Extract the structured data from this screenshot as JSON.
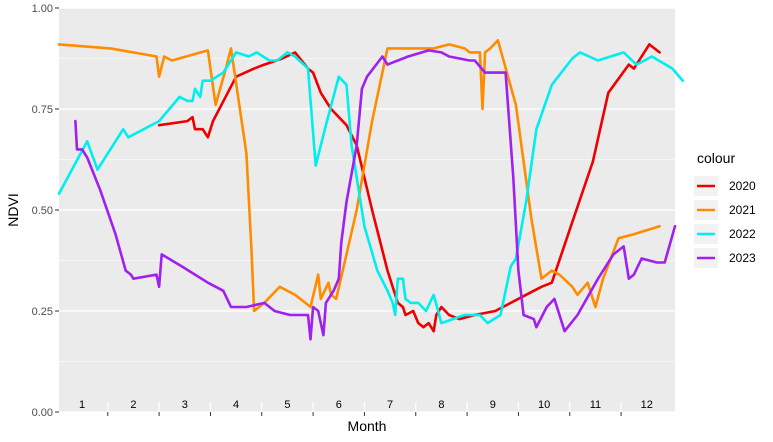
{
  "chart_data": {
    "type": "line",
    "xlabel": "Month",
    "ylabel": "NDVI",
    "xlim": [
      0,
      12
    ],
    "ylim": [
      0,
      1
    ],
    "y_ticks": [
      "0.00",
      "0.25",
      "0.50",
      "0.75",
      "1.00"
    ],
    "y_tick_values": [
      0,
      0.25,
      0.5,
      0.75,
      1.0
    ],
    "month_labels": [
      "1",
      "2",
      "3",
      "4",
      "5",
      "6",
      "7",
      "8",
      "9",
      "10",
      "11",
      "12"
    ],
    "month_label_values": [
      0.45,
      1.45,
      2.45,
      3.45,
      4.45,
      5.45,
      6.45,
      7.45,
      8.45,
      9.45,
      10.45,
      11.45
    ],
    "month_divider_values": [
      0.95,
      1.95,
      2.95,
      3.95,
      4.95,
      5.95,
      6.95,
      7.95,
      8.95,
      9.95,
      10.95
    ],
    "grid": true,
    "legend": {
      "title": "colour",
      "position": "right"
    },
    "series": [
      {
        "name": "2020",
        "color": "#ee0000",
        "points": [
          [
            1.95,
            0.71
          ],
          [
            2.5,
            0.72
          ],
          [
            2.6,
            0.73
          ],
          [
            2.65,
            0.7
          ],
          [
            2.8,
            0.7
          ],
          [
            2.9,
            0.68
          ],
          [
            3.0,
            0.72
          ],
          [
            3.45,
            0.83
          ],
          [
            3.8,
            0.85
          ],
          [
            4.0,
            0.86
          ],
          [
            4.35,
            0.875
          ],
          [
            4.6,
            0.89
          ],
          [
            4.85,
            0.85
          ],
          [
            4.95,
            0.84
          ],
          [
            5.1,
            0.79
          ],
          [
            5.3,
            0.75
          ],
          [
            5.6,
            0.71
          ],
          [
            5.8,
            0.66
          ],
          [
            6.1,
            0.5
          ],
          [
            6.4,
            0.35
          ],
          [
            6.6,
            0.27
          ],
          [
            6.7,
            0.26
          ],
          [
            6.75,
            0.24
          ],
          [
            6.9,
            0.25
          ],
          [
            7.0,
            0.22
          ],
          [
            7.1,
            0.21
          ],
          [
            7.2,
            0.22
          ],
          [
            7.3,
            0.2
          ],
          [
            7.35,
            0.24
          ],
          [
            7.45,
            0.26
          ],
          [
            7.6,
            0.24
          ],
          [
            7.8,
            0.23
          ],
          [
            8.1,
            0.24
          ],
          [
            8.5,
            0.25
          ],
          [
            8.8,
            0.27
          ],
          [
            9.1,
            0.29
          ],
          [
            9.4,
            0.31
          ],
          [
            9.6,
            0.32
          ],
          [
            10.0,
            0.47
          ],
          [
            10.4,
            0.62
          ],
          [
            10.7,
            0.79
          ],
          [
            11.1,
            0.86
          ],
          [
            11.2,
            0.85
          ],
          [
            11.5,
            0.91
          ],
          [
            11.7,
            0.89
          ]
        ]
      },
      {
        "name": "2021",
        "color": "#ff8c00",
        "points": [
          [
            0.0,
            0.91
          ],
          [
            1.0,
            0.9
          ],
          [
            1.9,
            0.88
          ],
          [
            1.95,
            0.83
          ],
          [
            2.05,
            0.88
          ],
          [
            2.2,
            0.87
          ],
          [
            2.9,
            0.895
          ],
          [
            3.05,
            0.76
          ],
          [
            3.25,
            0.85
          ],
          [
            3.35,
            0.9
          ],
          [
            3.65,
            0.64
          ],
          [
            3.75,
            0.4
          ],
          [
            3.8,
            0.25
          ],
          [
            4.0,
            0.27
          ],
          [
            4.3,
            0.31
          ],
          [
            4.6,
            0.29
          ],
          [
            4.8,
            0.27
          ],
          [
            4.9,
            0.26
          ],
          [
            5.05,
            0.34
          ],
          [
            5.1,
            0.28
          ],
          [
            5.25,
            0.32
          ],
          [
            5.3,
            0.29
          ],
          [
            5.4,
            0.28
          ],
          [
            5.8,
            0.5
          ],
          [
            6.1,
            0.72
          ],
          [
            6.4,
            0.9
          ],
          [
            6.8,
            0.9
          ],
          [
            7.3,
            0.9
          ],
          [
            7.6,
            0.91
          ],
          [
            7.9,
            0.9
          ],
          [
            8.0,
            0.89
          ],
          [
            8.2,
            0.89
          ],
          [
            8.25,
            0.75
          ],
          [
            8.3,
            0.89
          ],
          [
            8.4,
            0.9
          ],
          [
            8.55,
            0.92
          ],
          [
            8.9,
            0.76
          ],
          [
            9.2,
            0.48
          ],
          [
            9.4,
            0.33
          ],
          [
            9.6,
            0.35
          ],
          [
            9.75,
            0.34
          ],
          [
            10.0,
            0.31
          ],
          [
            10.1,
            0.29
          ],
          [
            10.3,
            0.32
          ],
          [
            10.45,
            0.26
          ],
          [
            10.6,
            0.33
          ],
          [
            10.9,
            0.43
          ],
          [
            11.2,
            0.44
          ],
          [
            11.7,
            0.46
          ]
        ]
      },
      {
        "name": "2022",
        "color": "#00eeee",
        "points": [
          [
            0.0,
            0.54
          ],
          [
            0.55,
            0.67
          ],
          [
            0.75,
            0.6
          ],
          [
            1.25,
            0.7
          ],
          [
            1.35,
            0.68
          ],
          [
            1.95,
            0.72
          ],
          [
            2.35,
            0.78
          ],
          [
            2.5,
            0.77
          ],
          [
            2.6,
            0.77
          ],
          [
            2.65,
            0.8
          ],
          [
            2.75,
            0.78
          ],
          [
            2.8,
            0.82
          ],
          [
            2.95,
            0.82
          ],
          [
            3.2,
            0.84
          ],
          [
            3.45,
            0.89
          ],
          [
            3.7,
            0.88
          ],
          [
            3.85,
            0.89
          ],
          [
            4.1,
            0.87
          ],
          [
            4.25,
            0.87
          ],
          [
            4.45,
            0.89
          ],
          [
            4.6,
            0.88
          ],
          [
            4.85,
            0.85
          ],
          [
            5.0,
            0.61
          ],
          [
            5.2,
            0.71
          ],
          [
            5.45,
            0.83
          ],
          [
            5.6,
            0.81
          ],
          [
            5.7,
            0.66
          ],
          [
            5.95,
            0.46
          ],
          [
            6.2,
            0.35
          ],
          [
            6.4,
            0.3
          ],
          [
            6.5,
            0.27
          ],
          [
            6.55,
            0.24
          ],
          [
            6.6,
            0.33
          ],
          [
            6.7,
            0.33
          ],
          [
            6.75,
            0.28
          ],
          [
            6.85,
            0.27
          ],
          [
            7.0,
            0.27
          ],
          [
            7.15,
            0.25
          ],
          [
            7.3,
            0.29
          ],
          [
            7.45,
            0.22
          ],
          [
            7.9,
            0.24
          ],
          [
            8.2,
            0.24
          ],
          [
            8.35,
            0.22
          ],
          [
            8.6,
            0.24
          ],
          [
            8.8,
            0.36
          ],
          [
            8.9,
            0.38
          ],
          [
            9.1,
            0.52
          ],
          [
            9.3,
            0.7
          ],
          [
            9.6,
            0.81
          ],
          [
            10.0,
            0.875
          ],
          [
            10.15,
            0.89
          ],
          [
            10.5,
            0.87
          ],
          [
            11.0,
            0.89
          ],
          [
            11.25,
            0.86
          ],
          [
            11.55,
            0.88
          ],
          [
            11.95,
            0.85
          ],
          [
            12.15,
            0.82
          ]
        ]
      },
      {
        "name": "2023",
        "color": "#a020f0",
        "points": [
          [
            0.32,
            0.72
          ],
          [
            0.35,
            0.65
          ],
          [
            0.45,
            0.65
          ],
          [
            0.55,
            0.63
          ],
          [
            0.8,
            0.55
          ],
          [
            1.1,
            0.44
          ],
          [
            1.3,
            0.35
          ],
          [
            1.4,
            0.34
          ],
          [
            1.45,
            0.33
          ],
          [
            1.9,
            0.34
          ],
          [
            1.95,
            0.31
          ],
          [
            2.0,
            0.39
          ],
          [
            2.4,
            0.36
          ],
          [
            2.9,
            0.32
          ],
          [
            3.2,
            0.3
          ],
          [
            3.35,
            0.26
          ],
          [
            3.65,
            0.26
          ],
          [
            4.0,
            0.27
          ],
          [
            4.2,
            0.25
          ],
          [
            4.5,
            0.24
          ],
          [
            4.85,
            0.24
          ],
          [
            4.9,
            0.18
          ],
          [
            4.95,
            0.26
          ],
          [
            5.05,
            0.25
          ],
          [
            5.15,
            0.19
          ],
          [
            5.2,
            0.27
          ],
          [
            5.35,
            0.3
          ],
          [
            5.45,
            0.33
          ],
          [
            5.5,
            0.42
          ],
          [
            5.6,
            0.52
          ],
          [
            5.8,
            0.66
          ],
          [
            5.9,
            0.8
          ],
          [
            6.0,
            0.83
          ],
          [
            6.3,
            0.88
          ],
          [
            6.4,
            0.86
          ],
          [
            6.8,
            0.88
          ],
          [
            7.2,
            0.895
          ],
          [
            7.45,
            0.89
          ],
          [
            7.6,
            0.88
          ],
          [
            8.0,
            0.87
          ],
          [
            8.1,
            0.87
          ],
          [
            8.3,
            0.84
          ],
          [
            8.5,
            0.84
          ],
          [
            8.7,
            0.84
          ],
          [
            8.85,
            0.58
          ],
          [
            8.95,
            0.35
          ],
          [
            9.05,
            0.24
          ],
          [
            9.25,
            0.23
          ],
          [
            9.3,
            0.21
          ],
          [
            9.5,
            0.26
          ],
          [
            9.65,
            0.28
          ],
          [
            9.75,
            0.24
          ],
          [
            9.85,
            0.2
          ],
          [
            10.1,
            0.24
          ],
          [
            10.5,
            0.33
          ],
          [
            10.8,
            0.39
          ],
          [
            11.0,
            0.41
          ],
          [
            11.1,
            0.33
          ],
          [
            11.2,
            0.34
          ],
          [
            11.35,
            0.38
          ],
          [
            11.65,
            0.37
          ],
          [
            11.8,
            0.37
          ],
          [
            12.0,
            0.46
          ]
        ]
      }
    ]
  }
}
